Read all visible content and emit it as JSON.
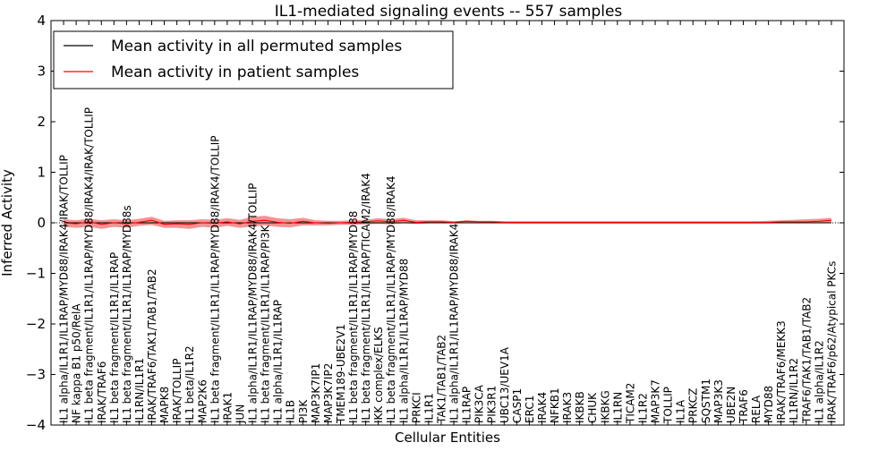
{
  "chart_data": {
    "type": "line",
    "title": "IL1-mediated signaling events -- 557 samples",
    "xlabel": "Cellular Entities",
    "ylabel": "Inferred Activity",
    "ylim": [
      -4,
      4
    ],
    "yticks": [
      -4,
      -3,
      -2,
      -1,
      0,
      1,
      2,
      3,
      4
    ],
    "ytick_labels": [
      "−4",
      "−3",
      "−2",
      "−1",
      "0",
      "1",
      "2",
      "3",
      "4"
    ],
    "grid": false,
    "legend_position": "top-left",
    "colors": {
      "permuted": "#000000",
      "patient": "#ff0000",
      "band": "#f08080",
      "zero_line": "#000000"
    },
    "categories": [
      "IL1 alpha/IL1R1/IL1RAP/MYD88/IRAK4/IRAK/TOLLIP",
      "NF kappa B1 p50/RelA",
      "IL1 beta fragment/IL1R1/IL1RAP/MYD88/IRAK4/IRAK/TOLLIP",
      "IRAK/TRAF6",
      "IL1 beta fragment/IL1R1/IL1RAP",
      "IL1 beta fragment/IL1R1/IL1RAP/MYD88s",
      "IL1RN/IL1R1",
      "IRAK/TRAF6/TAK1/TAB1/TAB2",
      "MAPK8",
      "IRAK/TOLLIP",
      "IL1 beta/IL1R2",
      "MAP2K6",
      "IL1 beta fragment/IL1R1/IL1RAP/MYD88/IRAK4/TOLLIP",
      "IRAK1",
      "JUN",
      "IL1 alpha/IL1R1/IL1RAP/MYD88/IRAK4/TOLLIP",
      "IL1 beta fragment/IL1R1/IL1RAP/PI3K",
      "IL1 alpha/IL1R1/IL1RAP",
      "IL1B",
      "PI3K",
      "MAP3K7IP1",
      "MAP3K7IP2",
      "TMEM189-UBE2V1",
      "IL1 beta fragment/IL1R1/IL1RAP/MYD88",
      "IL1 beta fragment/IL1R1/IL1RAP/TICAM2/IRAK4",
      "IKK complex/ELKS",
      "IL1 beta fragment/IL1R1/IL1RAP/MYD88/IRAK4",
      "IL1 alpha/IL1R1/IL1RAP/MYD88",
      "PRKCI",
      "IL1R1",
      "TAK1/TAB1/TAB2",
      "IL1 alpha/IL1R1/IL1RAP/MYD88/IRAK4",
      "IL1RAP",
      "PIK3CA",
      "PIK3R1",
      "UBC13/UEV1A",
      "CASP1",
      "ERC1",
      "IRAK4",
      "NFKB1",
      "IRAK3",
      "IKBKB",
      "CHUK",
      "IKBKG",
      "IL1RN",
      "TICAM2",
      "IL1R2",
      "MAP3K7",
      "TOLLIP",
      "IL1A",
      "PRKCZ",
      "SQSTM1",
      "MAP3K3",
      "UBE2N",
      "TRAF6",
      "RELA",
      "MYD88",
      "IRAK/TRAF6/MEKK3",
      "IL1RN/IL1R2",
      "TRAF6/TAK1/TAB1/TAB2",
      "IL1 alpha/IL1R2",
      "IRAK/TRAF6/p62/Atypical PKCs"
    ],
    "series": [
      {
        "name": "Mean activity in all permuted samples",
        "values": [
          0,
          0,
          0,
          0,
          0,
          0,
          0,
          0,
          0,
          0,
          0,
          0,
          0,
          0,
          0,
          0,
          0,
          0,
          0,
          0,
          0,
          0,
          0,
          0,
          0,
          0,
          0,
          0,
          0,
          0,
          0,
          0,
          0,
          0,
          0,
          0,
          0,
          0,
          0,
          0,
          0,
          0,
          0,
          0,
          0,
          0,
          0,
          0,
          0,
          0,
          0,
          0,
          0,
          0,
          0,
          0,
          0,
          0,
          0,
          0,
          0,
          0
        ]
      },
      {
        "name": "Mean activity in patient samples",
        "values": [
          0.0,
          -0.02,
          0.02,
          -0.03,
          0.0,
          -0.02,
          0.01,
          0.05,
          -0.03,
          -0.02,
          -0.03,
          0.0,
          -0.01,
          0.02,
          -0.02,
          0.03,
          0.05,
          0.01,
          -0.01,
          0.03,
          0.0,
          -0.01,
          0.0,
          0.01,
          0.02,
          0.04,
          0.02,
          0.05,
          0.01,
          0.02,
          0.02,
          0.01,
          0.03,
          0.02,
          0.02,
          0.01,
          0.01,
          0.01,
          0.01,
          0.01,
          0.01,
          0.01,
          0.01,
          0.01,
          0.01,
          0.01,
          0.01,
          0.01,
          0.01,
          0.01,
          0.01,
          0.01,
          0.01,
          0.01,
          0.01,
          0.01,
          0.01,
          0.02,
          0.02,
          0.02,
          0.03,
          0.05
        ],
        "lower": [
          -0.08,
          -0.1,
          -0.08,
          -0.12,
          -0.08,
          -0.1,
          -0.06,
          -0.04,
          -0.1,
          -0.1,
          -0.12,
          -0.08,
          -0.1,
          -0.06,
          -0.1,
          -0.07,
          -0.05,
          -0.08,
          -0.09,
          -0.05,
          -0.05,
          -0.05,
          -0.04,
          -0.04,
          -0.03,
          -0.02,
          -0.03,
          -0.01,
          -0.02,
          -0.01,
          -0.01,
          -0.01,
          0.0,
          0.0,
          0.0,
          0.0,
          0.0,
          0.0,
          0.0,
          0.0,
          0.0,
          0.0,
          0.0,
          0.0,
          0.0,
          0.0,
          0.0,
          0.0,
          0.0,
          0.0,
          0.0,
          0.0,
          0.0,
          0.0,
          0.0,
          0.0,
          0.0,
          0.0,
          0.0,
          0.0,
          0.0,
          0.0
        ],
        "upper": [
          0.07,
          0.05,
          0.08,
          0.05,
          0.07,
          0.05,
          0.08,
          0.12,
          0.04,
          0.05,
          0.05,
          0.07,
          0.06,
          0.09,
          0.06,
          0.12,
          0.14,
          0.09,
          0.07,
          0.1,
          0.05,
          0.04,
          0.04,
          0.05,
          0.06,
          0.09,
          0.07,
          0.1,
          0.05,
          0.05,
          0.05,
          0.03,
          0.05,
          0.04,
          0.04,
          0.03,
          0.03,
          0.03,
          0.03,
          0.03,
          0.03,
          0.03,
          0.03,
          0.03,
          0.03,
          0.03,
          0.03,
          0.03,
          0.03,
          0.03,
          0.03,
          0.03,
          0.03,
          0.03,
          0.03,
          0.03,
          0.04,
          0.05,
          0.06,
          0.07,
          0.08,
          0.1
        ]
      }
    ]
  }
}
